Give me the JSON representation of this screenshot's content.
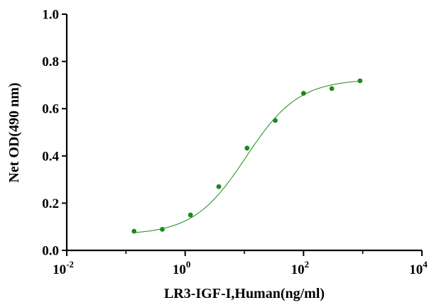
{
  "chart_data": {
    "type": "scatter",
    "title": "",
    "xlabel": "LR3-IGF-I,Human(ng/ml)",
    "ylabel": "Net OD(490 nm)",
    "x_scale": "log",
    "xlim": [
      0.01,
      10000
    ],
    "ylim": [
      0,
      1.0
    ],
    "x_ticks": [
      {
        "value": 0.01,
        "base": "10",
        "exp": "-2"
      },
      {
        "value": 1,
        "base": "10",
        "exp": "0"
      },
      {
        "value": 100,
        "base": "10",
        "exp": "2"
      },
      {
        "value": 10000,
        "base": "10",
        "exp": "4"
      }
    ],
    "y_ticks": [
      {
        "value": 0.0,
        "label": "0.0"
      },
      {
        "value": 0.2,
        "label": "0.2"
      },
      {
        "value": 0.4,
        "label": "0.4"
      },
      {
        "value": 0.6,
        "label": "0.6"
      },
      {
        "value": 0.8,
        "label": "0.8"
      },
      {
        "value": 1.0,
        "label": "1.0"
      }
    ],
    "grid": false,
    "legend": "none",
    "series": [
      {
        "points": [
          {
            "x": 0.137,
            "y": 0.081
          },
          {
            "x": 0.41,
            "y": 0.089
          },
          {
            "x": 1.23,
            "y": 0.15
          },
          {
            "x": 3.7,
            "y": 0.27
          },
          {
            "x": 11.1,
            "y": 0.433
          },
          {
            "x": 33.3,
            "y": 0.55
          },
          {
            "x": 100,
            "y": 0.665
          },
          {
            "x": 300,
            "y": 0.685
          },
          {
            "x": 900,
            "y": 0.718
          }
        ],
        "fit": {
          "model": "4PL",
          "bottom": 0.066,
          "top": 0.725,
          "ec50": 10.7,
          "hill": 0.98
        }
      }
    ],
    "colors": {
      "series": "#1a8a1a",
      "axis": "#000000"
    }
  }
}
